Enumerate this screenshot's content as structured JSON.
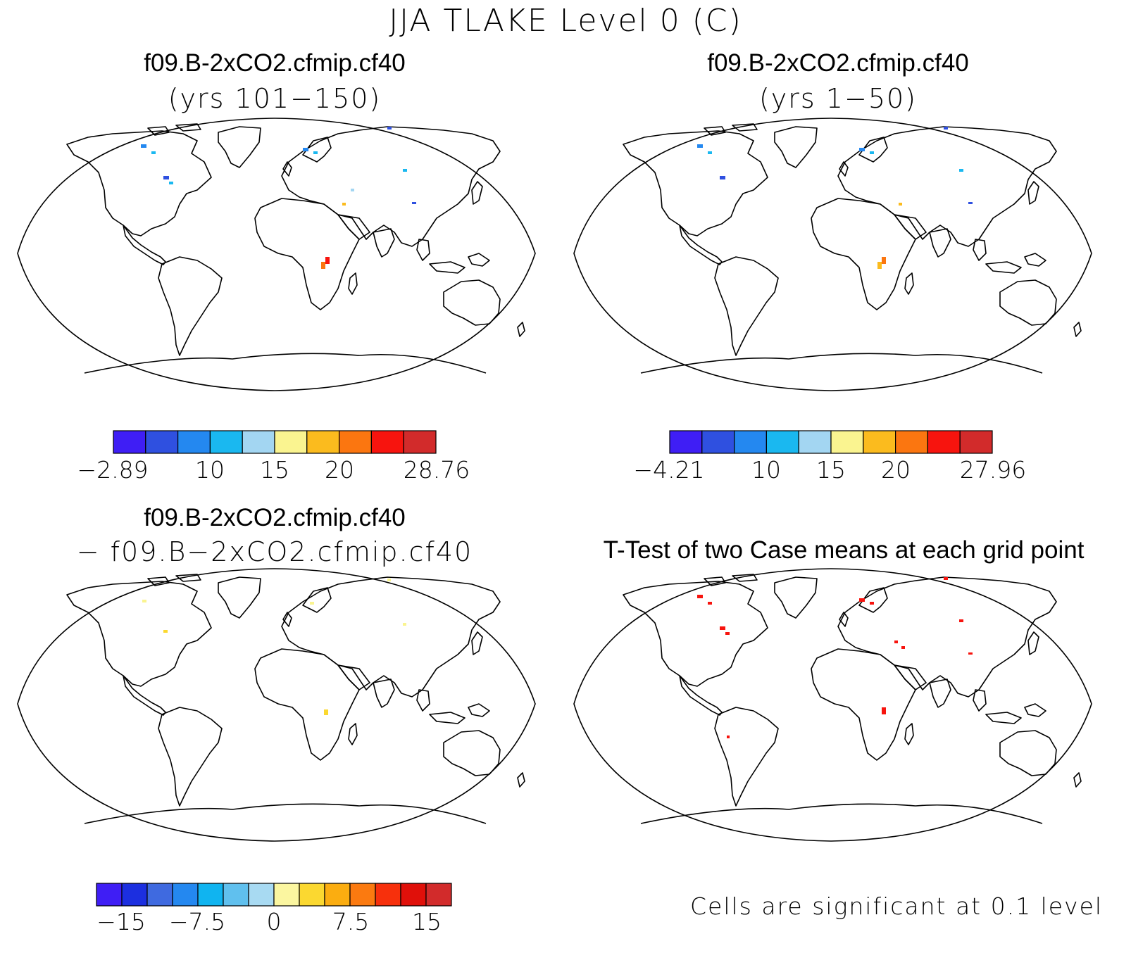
{
  "figure": {
    "title": "JJA TLAKE Level 0 (C)"
  },
  "panels": [
    {
      "case_name": "f09.B-2xCO2.cfmip.cf40",
      "subtitle": "(yrs 101−150)",
      "colorbar": {
        "colors": [
          "#3f1ef5",
          "#2f50e0",
          "#2488f0",
          "#1ab8f0",
          "#a3d6f2",
          "#faf490",
          "#fbbb1e",
          "#fb7610",
          "#f7140e",
          "#d22b2b"
        ],
        "labels": [
          "−2.89",
          "10",
          "15",
          "20",
          "28.76"
        ]
      }
    },
    {
      "case_name": "f09.B-2xCO2.cfmip.cf40",
      "subtitle": "(yrs 1−50)",
      "colorbar": {
        "colors": [
          "#3f1ef5",
          "#2f50e0",
          "#2488f0",
          "#1ab8f0",
          "#a3d6f2",
          "#faf490",
          "#fbbb1e",
          "#fb7610",
          "#f7140e",
          "#d22b2b"
        ],
        "labels": [
          "−4.21",
          "10",
          "15",
          "20",
          "27.96"
        ]
      }
    },
    {
      "case_name": "f09.B-2xCO2.cfmip.cf40",
      "subtitle": "− f09.B−2xCO2.cfmip.cf40",
      "colorbar": {
        "colors": [
          "#3f1ef5",
          "#1c2fe0",
          "#3f6ae0",
          "#2488f0",
          "#10b4f0",
          "#60c0ee",
          "#a8daf2",
          "#fbf6a0",
          "#fbd830",
          "#fbad10",
          "#fb7a10",
          "#f7300c",
          "#e0100a",
          "#d22b2b"
        ],
        "labels": [
          "−15",
          "−7.5",
          "0",
          "7.5",
          "15"
        ]
      }
    },
    {
      "title": "T-Test of two Case means at each grid point",
      "note": "Cells are significant at 0.1 level"
    }
  ]
}
